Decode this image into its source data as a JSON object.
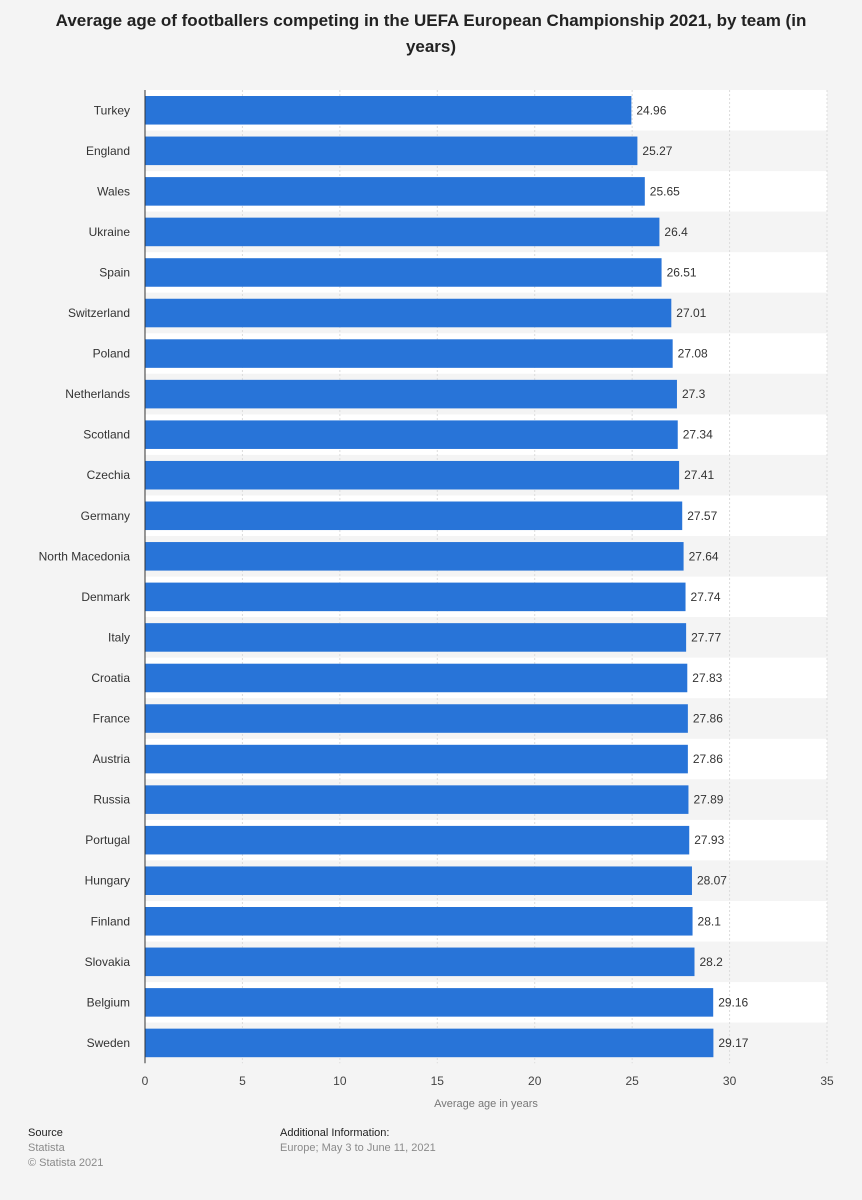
{
  "chart_data": {
    "type": "bar",
    "orientation": "horizontal",
    "title": "Average age of footballers competing in the UEFA European Championship 2021, by team (in years)",
    "xlabel": "Average age in years",
    "ylabel": "",
    "xlim": [
      0,
      35
    ],
    "ticks": [
      "0",
      "5",
      "10",
      "15",
      "20",
      "25",
      "30",
      "35"
    ],
    "grid": true,
    "bar_color": "#2874d8",
    "categories": [
      "Turkey",
      "England",
      "Wales",
      "Ukraine",
      "Spain",
      "Switzerland",
      "Poland",
      "Netherlands",
      "Scotland",
      "Czechia",
      "Germany",
      "North Macedonia",
      "Denmark",
      "Italy",
      "Croatia",
      "France",
      "Austria",
      "Russia",
      "Portugal",
      "Hungary",
      "Finland",
      "Slovakia",
      "Belgium",
      "Sweden"
    ],
    "values": [
      24.96,
      25.27,
      25.65,
      26.4,
      26.51,
      27.01,
      27.08,
      27.3,
      27.34,
      27.41,
      27.57,
      27.64,
      27.74,
      27.77,
      27.83,
      27.86,
      27.86,
      27.89,
      27.93,
      28.07,
      28.1,
      28.2,
      29.16,
      29.17
    ],
    "value_labels": [
      "24.96",
      "25.27",
      "25.65",
      "26.4",
      "26.51",
      "27.01",
      "27.08",
      "27.3",
      "27.34",
      "27.41",
      "27.57",
      "27.64",
      "27.74",
      "27.77",
      "27.83",
      "27.86",
      "27.86",
      "27.89",
      "27.93",
      "28.07",
      "28.1",
      "28.2",
      "29.16",
      "29.17"
    ]
  },
  "footer": {
    "source_heading": "Source",
    "source_name": "Statista",
    "copyright": "© Statista 2021",
    "info_heading": "Additional Information:",
    "info_text": "Europe; May 3 to June 11, 2021"
  }
}
